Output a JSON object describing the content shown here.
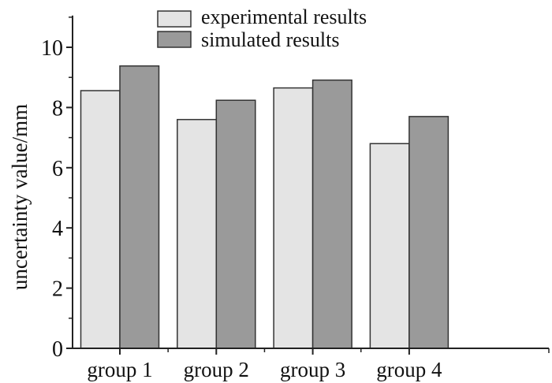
{
  "chart_data": {
    "type": "bar",
    "title": "",
    "xlabel": "",
    "ylabel": "uncertainty value/mm",
    "categories": [
      "group 1",
      "group 2",
      "group 3",
      "group 4"
    ],
    "series": [
      {
        "name": "experimental results",
        "values": [
          8.56,
          7.6,
          8.65,
          6.8
        ],
        "color": "#e4e4e4"
      },
      {
        "name": "simulated results",
        "values": [
          9.38,
          8.24,
          8.91,
          7.7
        ],
        "color": "#9a9a9a"
      }
    ],
    "ylim": [
      0,
      11
    ],
    "yticks": [
      "0",
      "2",
      "4",
      "6",
      "8",
      "10"
    ],
    "grid": false,
    "legend_position": "top-center"
  }
}
